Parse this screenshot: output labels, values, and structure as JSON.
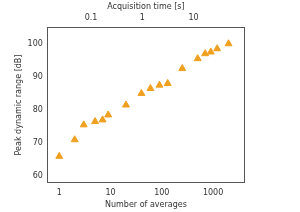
{
  "chart_data": {
    "type": "scatter",
    "x_label": "Number of averages",
    "y_label": "Peak dynamic range [dB]",
    "x2_label": "Acquisition time [s]",
    "x": [
      1,
      2,
      3,
      5,
      7,
      9,
      20,
      40,
      60,
      90,
      130,
      250,
      500,
      700,
      900,
      1200,
      2000
    ],
    "values": [
      66,
      71,
      75.5,
      76.5,
      77,
      78.5,
      81.5,
      85,
      86.5,
      87.5,
      88,
      92.5,
      95.5,
      97,
      97.5,
      98.5,
      100
    ],
    "color": "#f0a020",
    "marker": "triangle",
    "log": "x",
    "grid": false,
    "xlim": [
      0.6,
      4000
    ],
    "xticks": [
      1,
      10,
      100,
      1000
    ],
    "x2lim": [
      0.0144,
      96
    ],
    "x2ticks": [
      0.1,
      1,
      10
    ],
    "ylim": [
      58,
      105
    ],
    "yticks": [
      60,
      70,
      80,
      90,
      100
    ]
  }
}
